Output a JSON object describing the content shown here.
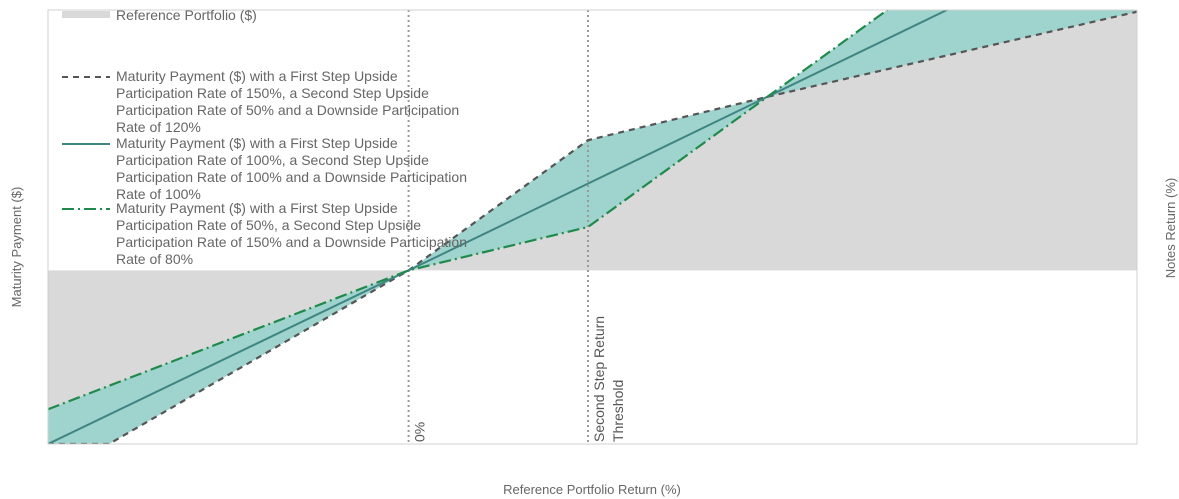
{
  "chart_data": {
    "type": "line",
    "xlabel": "Reference Portfolio Return (%)",
    "ylabel": "Maturity Payment ($)",
    "y2label": "Notes Return (%)",
    "annotations": [
      {
        "label": "0%",
        "x": 0
      },
      {
        "label": "Second Step Return Threshold",
        "x": 1,
        "lines": [
          "Second Step Return",
          "Threshold"
        ]
      }
    ],
    "series": [
      {
        "name": "Reference Portfolio ($)",
        "kind": "area",
        "color": "#d9d9d9",
        "x": [
          -2.01,
          0,
          4.06
        ],
        "y": [
          0,
          0,
          4.09
        ]
      },
      {
        "name": "Maturity Payment ($) with a First Step Upside Participation Rate of 150%, a Second Step Upside Participation Rate of 50% and a Downside Participation Rate of 120%",
        "lines": [
          "Maturity Payment ($) with a First Step Upside",
          "Participation Rate of 150%, a Second Step Upside",
          "Participation Rate of 50% and a Downside Participation",
          "Rate of 120%"
        ],
        "style": "dashed",
        "color": "#555555",
        "x": [
          -2.01,
          -1.67,
          0,
          1,
          2.0,
          4.06
        ],
        "y": [
          -2.0,
          -2.0,
          0,
          1.5,
          2.0,
          2.98
        ]
      },
      {
        "name": "Maturity Payment ($) with a First Step Upside Participation Rate of 100%, a Second Step Upside Participation Rate of 100% and a Downside Participation Rate of 100%",
        "lines": [
          "Maturity Payment ($) with a First Step Upside",
          "Participation Rate of 100%, a Second Step Upside",
          "Participation Rate of 100% and a Downside Participation",
          "Rate of 100%"
        ],
        "style": "solid",
        "color": "#3f8582",
        "x": [
          -2.01,
          0,
          4.06
        ],
        "y": [
          -2.0,
          0,
          4.06
        ]
      },
      {
        "name": "Maturity Payment ($) with a First Step Upside Participation Rate of 50%, a Second Step Upside Participation Rate of 150% and a Downside Participation Rate of 80%",
        "lines": [
          "Maturity Payment ($) with a First Step Upside",
          "Participation Rate of 50%, a Second Step Upside",
          "Participation Rate of 150% and a Downside Participation",
          "Rate of 80%"
        ],
        "style": "dashdot",
        "color": "#1f8a4c",
        "x": [
          -2.01,
          0,
          1,
          2.0,
          3.67
        ],
        "y": [
          -1.6,
          0,
          0.5,
          2.0,
          4.5
        ]
      }
    ],
    "band_fill": "#9fd3cd",
    "xlim": [
      -2.01,
      4.06
    ],
    "ylim": [
      -2.0,
      3.0
    ],
    "grid": false,
    "legend": "top-left"
  }
}
